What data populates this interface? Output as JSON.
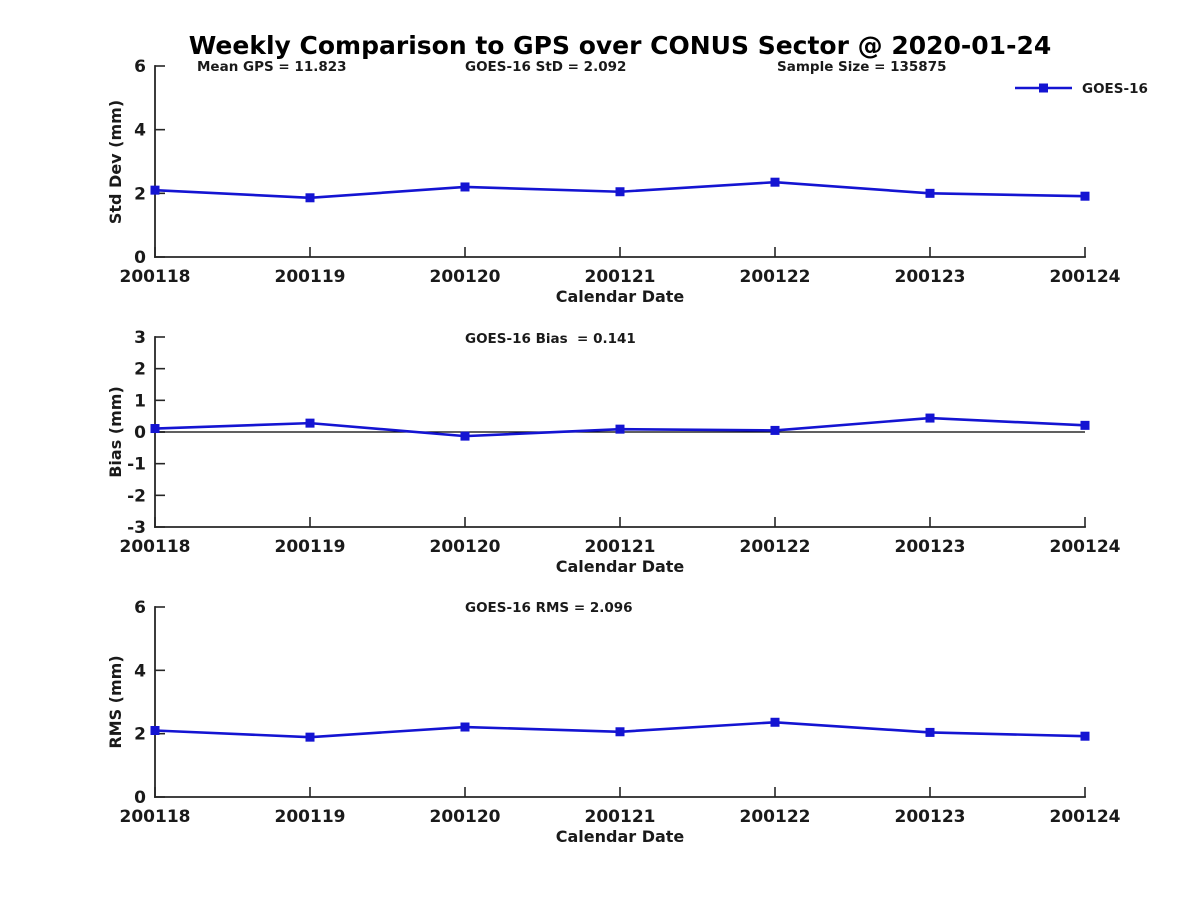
{
  "title": "Weekly Comparison to GPS over CONUS Sector @ 2020-01-24",
  "legend": {
    "label": "GOES-16",
    "position": "top-right"
  },
  "colors": {
    "line": "#1414d2",
    "axis": "#262626",
    "text": "#1a1a1a",
    "zero_line": "#000000",
    "background": "#ffffff"
  },
  "chart_data": [
    {
      "type": "line",
      "subplot": "std-dev",
      "title": "",
      "categories": [
        "200118",
        "200119",
        "200120",
        "200121",
        "200122",
        "200123",
        "200124"
      ],
      "series": [
        {
          "name": "GOES-16",
          "marker": "square",
          "values": [
            2.1,
            1.86,
            2.2,
            2.05,
            2.35,
            2.0,
            1.91
          ]
        }
      ],
      "xlabel": "Calendar Date",
      "ylabel": "Std Dev (mm)",
      "ylim": [
        0,
        6
      ],
      "yticks": [
        0,
        2,
        4,
        6
      ],
      "grid": false,
      "zero_line": false,
      "legend_position": "top-right",
      "annotations": [
        "Mean GPS = 11.823",
        "GOES-16 StD = 2.092",
        "Sample Size = 135875"
      ]
    },
    {
      "type": "line",
      "subplot": "bias",
      "title": "",
      "categories": [
        "200118",
        "200119",
        "200120",
        "200121",
        "200122",
        "200123",
        "200124"
      ],
      "series": [
        {
          "name": "GOES-16",
          "marker": "square",
          "values": [
            0.11,
            0.28,
            -0.13,
            0.09,
            0.05,
            0.44,
            0.21
          ]
        }
      ],
      "xlabel": "Calendar Date",
      "ylabel": "Bias (mm)",
      "ylim": [
        -3,
        3
      ],
      "yticks": [
        3,
        2,
        1,
        0,
        -1,
        -2,
        -3
      ],
      "grid": false,
      "zero_line": true,
      "annotations": [
        "GOES-16 Bias  = 0.141"
      ]
    },
    {
      "type": "line",
      "subplot": "rms",
      "title": "",
      "categories": [
        "200118",
        "200119",
        "200120",
        "200121",
        "200122",
        "200123",
        "200124"
      ],
      "series": [
        {
          "name": "GOES-16",
          "marker": "square",
          "values": [
            2.1,
            1.89,
            2.21,
            2.06,
            2.36,
            2.04,
            1.92
          ]
        }
      ],
      "xlabel": "Calendar Date",
      "ylabel": "RMS (mm)",
      "ylim": [
        0,
        6
      ],
      "yticks": [
        0,
        2,
        4,
        6
      ],
      "grid": false,
      "zero_line": false,
      "annotations": [
        "GOES-16 RMS = 2.096"
      ]
    }
  ]
}
